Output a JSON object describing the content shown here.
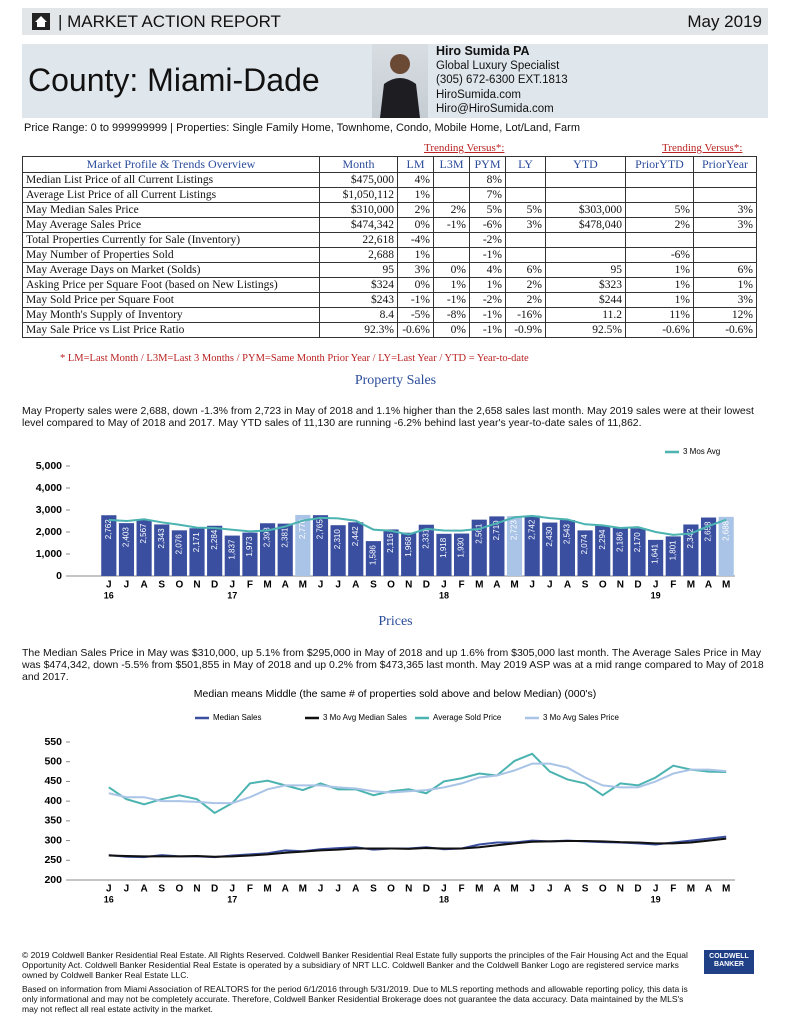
{
  "header": {
    "title": "| MARKET ACTION REPORT",
    "date": "May 2019",
    "county": "County: Miami-Dade"
  },
  "agent": {
    "name": "Hiro Sumida PA",
    "role": "Global Luxury Specialist",
    "phone": "(305) 672-6300 EXT.1813",
    "website": "HiroSumida.com",
    "email": "Hiro@HiroSumida.com"
  },
  "price_range": "Price Range: 0 to 999999999 | Properties: Single Family Home, Townhome, Condo, Mobile Home, Lot/Land, Farm",
  "table": {
    "group_headers": [
      "Trending Versus*:",
      "Trending Versus*:"
    ],
    "columns": [
      "Market Profile & Trends Overview",
      "Month",
      "LM",
      "L3M",
      "PYM",
      "LY",
      "YTD",
      "PriorYTD",
      "PriorYear"
    ],
    "rows": [
      [
        "Median List Price of all Current Listings",
        "$475,000",
        "4%",
        null,
        "8%",
        null,
        null,
        null,
        null
      ],
      [
        "Average List Price of all Current Listings",
        "$1,050,112",
        "1%",
        null,
        "7%",
        null,
        null,
        null,
        null
      ],
      [
        "May Median Sales Price",
        "$310,000",
        "2%",
        "2%",
        "5%",
        "5%",
        "$303,000",
        "5%",
        "3%"
      ],
      [
        "May Average Sales Price",
        "$474,342",
        "0%",
        "-1%",
        "-6%",
        "3%",
        "$478,040",
        "2%",
        "3%"
      ],
      [
        "Total Properties Currently for Sale (Inventory)",
        "22,618",
        "-4%",
        null,
        "-2%",
        null,
        null,
        null,
        null
      ],
      [
        "May Number of Properties Sold",
        "2,688",
        "1%",
        null,
        "-1%",
        null,
        null,
        "-6%",
        null
      ],
      [
        "May Average Days on Market (Solds)",
        "95",
        "3%",
        "0%",
        "4%",
        "6%",
        "95",
        "1%",
        "6%"
      ],
      [
        "Asking Price per Square Foot (based on New Listings)",
        "$324",
        "0%",
        "1%",
        "1%",
        "2%",
        "$323",
        "1%",
        "1%"
      ],
      [
        "May Sold Price per Square Foot",
        "$243",
        "-1%",
        "-1%",
        "-2%",
        "2%",
        "$244",
        "1%",
        "3%"
      ],
      [
        "May Month's Supply of Inventory",
        "8.4",
        "-5%",
        "-8%",
        "-1%",
        "-16%",
        "11.2",
        "11%",
        "12%"
      ],
      [
        "May Sale Price vs List Price Ratio",
        "92.3%",
        "-0.6%",
        "0%",
        "-1%",
        "-0.9%",
        "92.5%",
        "-0.6%",
        "-0.6%"
      ]
    ]
  },
  "table_note": "* LM=Last Month / L3M=Last 3 Months / PYM=Same Month Prior Year / LY=Last Year / YTD = Year-to-date",
  "sections": [
    {
      "title": "Property Sales",
      "text": "May Property sales were 2,688, down -1.3% from 2,723 in May of 2018 and 1.1% higher than the  2,658 sales last month.  May 2019 sales were at their lowest level compared to May of 2018 and 2017.  May YTD sales of 11,130 are running -6.2% behind last year's year-to-date sales of 11,862."
    },
    {
      "title": "Prices",
      "text": "The Median Sales Price in May was $310,000, up 5.1% from $295,000 in May of 2018 and up 1.6% from $305,000 last month.  The Average Sales Price in May was $474,342, down -5.5% from $501,855 in May of 2018 and up 0.2% from $473,365 last month.  May 2019 ASP was at a mid range compared to May of 2018 and 2017."
    }
  ],
  "chart_data": [
    {
      "type": "bar",
      "categories": [
        "J",
        "J",
        "A",
        "S",
        "O",
        "N",
        "D",
        "J",
        "F",
        "M",
        "A",
        "M",
        "J",
        "J",
        "A",
        "S",
        "O",
        "N",
        "D",
        "J",
        "F",
        "M",
        "A",
        "M",
        "J",
        "J",
        "A",
        "S",
        "O",
        "N",
        "D",
        "J",
        "F",
        "M",
        "A",
        "M"
      ],
      "category_years": [
        "16",
        null,
        null,
        null,
        null,
        null,
        null,
        "17",
        null,
        null,
        null,
        null,
        null,
        null,
        null,
        null,
        null,
        null,
        null,
        "18",
        null,
        null,
        null,
        null,
        null,
        null,
        null,
        null,
        null,
        null,
        null,
        "19",
        null,
        null,
        null,
        null
      ],
      "values": [
        2762,
        2403,
        2567,
        2343,
        2076,
        2171,
        2284,
        1837,
        1973,
        2398,
        2381,
        2776,
        2765,
        2310,
        2442,
        1586,
        2116,
        1968,
        2331,
        1918,
        1930,
        2561,
        2710,
        2723,
        2742,
        2430,
        2543,
        2074,
        2294,
        2186,
        2170,
        1641,
        1801,
        2342,
        2658,
        2688
      ],
      "value_labels": [
        "2,762",
        "2,403",
        "2,567",
        "2,343",
        "2,076",
        "2,171",
        "2,284",
        "1,837",
        "1,973",
        "2,398",
        "2,381",
        "2,776",
        "2,765",
        "2,310",
        "2,442",
        "1,586",
        "2,116",
        "1,968",
        "2,331",
        "1,918",
        "1,930",
        "2,561",
        "2,710",
        "2,723",
        "2,742",
        "2,430",
        "2,543",
        "2,074",
        "2,294",
        "2,186",
        "2,170",
        "1,641",
        "1,801",
        "2,342",
        "2,658",
        "2,688"
      ],
      "colors": [
        "#3a4fa0",
        "#3a4fa0",
        "#3a4fa0",
        "#3a4fa0",
        "#3a4fa0",
        "#3a4fa0",
        "#3a4fa0",
        "#3a4fa0",
        "#3a4fa0",
        "#3a4fa0",
        "#3a4fa0",
        "#a9c4e6",
        "#3a4fa0",
        "#3a4fa0",
        "#3a4fa0",
        "#3a4fa0",
        "#3a4fa0",
        "#3a4fa0",
        "#3a4fa0",
        "#3a4fa0",
        "#3a4fa0",
        "#3a4fa0",
        "#3a4fa0",
        "#a9c4e6",
        "#3a4fa0",
        "#3a4fa0",
        "#3a4fa0",
        "#3a4fa0",
        "#3a4fa0",
        "#3a4fa0",
        "#3a4fa0",
        "#3a4fa0",
        "#3a4fa0",
        "#3a4fa0",
        "#3a4fa0",
        "#a9c4e6"
      ],
      "series": [
        {
          "name": "3 Mos Avg",
          "color": "#4bb3b0",
          "values": [
            2550,
            2500,
            2580,
            2440,
            2330,
            2200,
            2180,
            2100,
            2030,
            2070,
            2250,
            2520,
            2640,
            2620,
            2510,
            2110,
            2050,
            1890,
            2140,
            2070,
            2060,
            2140,
            2400,
            2670,
            2730,
            2630,
            2570,
            2350,
            2300,
            2180,
            2220,
            2000,
            1870,
            1930,
            2270,
            2560
          ]
        }
      ],
      "ylim": [
        0,
        5000
      ],
      "yticks": [
        0,
        {
          "value": 1000,
          "label": "1,000"
        },
        {
          "value": 2000,
          "label": "2,000"
        },
        {
          "value": 3000,
          "label": "3,000"
        },
        {
          "value": 4000,
          "label": "4,000"
        },
        {
          "value": 5000,
          "label": "5,000"
        }
      ],
      "grid": false,
      "legend": "top-right"
    },
    {
      "type": "line",
      "title": "Median means Middle (the same # of properties sold above and below Median) (000's)",
      "categories": [
        "J",
        "J",
        "A",
        "S",
        "O",
        "N",
        "D",
        "J",
        "F",
        "M",
        "A",
        "M",
        "J",
        "J",
        "A",
        "S",
        "O",
        "N",
        "D",
        "J",
        "F",
        "M",
        "A",
        "M",
        "J",
        "J",
        "A",
        "S",
        "O",
        "N",
        "D",
        "J",
        "F",
        "M",
        "A",
        "M"
      ],
      "category_years": [
        "16",
        null,
        null,
        null,
        null,
        null,
        null,
        "17",
        null,
        null,
        null,
        null,
        null,
        null,
        null,
        null,
        null,
        null,
        null,
        "18",
        null,
        null,
        null,
        null,
        null,
        null,
        null,
        null,
        null,
        null,
        null,
        "19",
        null,
        null,
        null,
        null
      ],
      "series": [
        {
          "name": "Median Sales",
          "color": "#3a4fa0",
          "values": [
            263,
            259,
            258,
            263,
            260,
            260,
            258,
            262,
            265,
            268,
            275,
            273,
            278,
            281,
            283,
            277,
            280,
            280,
            283,
            278,
            280,
            290,
            295,
            295,
            300,
            298,
            300,
            298,
            296,
            295,
            293,
            290,
            295,
            300,
            305,
            310
          ]
        },
        {
          "name": "3 Mo Avg Median Sales",
          "color": "#111111",
          "values": [
            262,
            261,
            260,
            260,
            260,
            261,
            259,
            260,
            262,
            265,
            269,
            272,
            275,
            277,
            280,
            280,
            280,
            279,
            281,
            280,
            280,
            283,
            288,
            293,
            297,
            298,
            299,
            299,
            298,
            296,
            295,
            293,
            293,
            295,
            300,
            305
          ]
        },
        {
          "name": "Average Sold Price",
          "color": "#4bb3b0",
          "values": [
            435,
            405,
            392,
            405,
            415,
            405,
            370,
            395,
            445,
            452,
            440,
            428,
            445,
            430,
            430,
            415,
            425,
            430,
            420,
            450,
            458,
            470,
            465,
            502,
            520,
            475,
            455,
            445,
            415,
            445,
            440,
            460,
            490,
            480,
            475,
            474
          ]
        },
        {
          "name": "3 Mo Avg Sales Price",
          "color": "#a9c4e6",
          "values": [
            420,
            410,
            410,
            400,
            400,
            398,
            395,
            395,
            410,
            430,
            440,
            440,
            440,
            435,
            432,
            425,
            422,
            425,
            428,
            435,
            445,
            460,
            465,
            478,
            495,
            495,
            485,
            460,
            440,
            435,
            435,
            450,
            470,
            480,
            480,
            476
          ]
        }
      ],
      "ylim": [
        200,
        550
      ],
      "yticks": [
        200,
        250,
        300,
        350,
        400,
        450,
        500,
        550
      ],
      "grid": false,
      "legend": "top"
    }
  ],
  "footer": [
    "© 2019 Coldwell Banker Residential Real Estate.  All Rights Reserved. Coldwell Banker Residential Real Estate fully supports the principles of the Fair Housing Act and the Equal Opportunity Act.  Coldwell Banker Residential Real Estate is operated by a subsidiary of NRT LLC.  Coldwell Banker and the Coldwell Banker Logo are registered service marks owned by Coldwell Banker Real Estate LLC.",
    "Based on information from Miami Association of REALTORS for the period 6/1/2016 through 5/31/2019.  Due to MLS reporting methods and allowable reporting policy, this data is only informational and may not be completely accurate.  Therefore, Coldwell Banker Residential Brokerage does not guarantee the data accuracy.  Data maintained by the MLS's may not reflect all real estate activity in the market."
  ],
  "logo": "COLDWELL BANKER"
}
